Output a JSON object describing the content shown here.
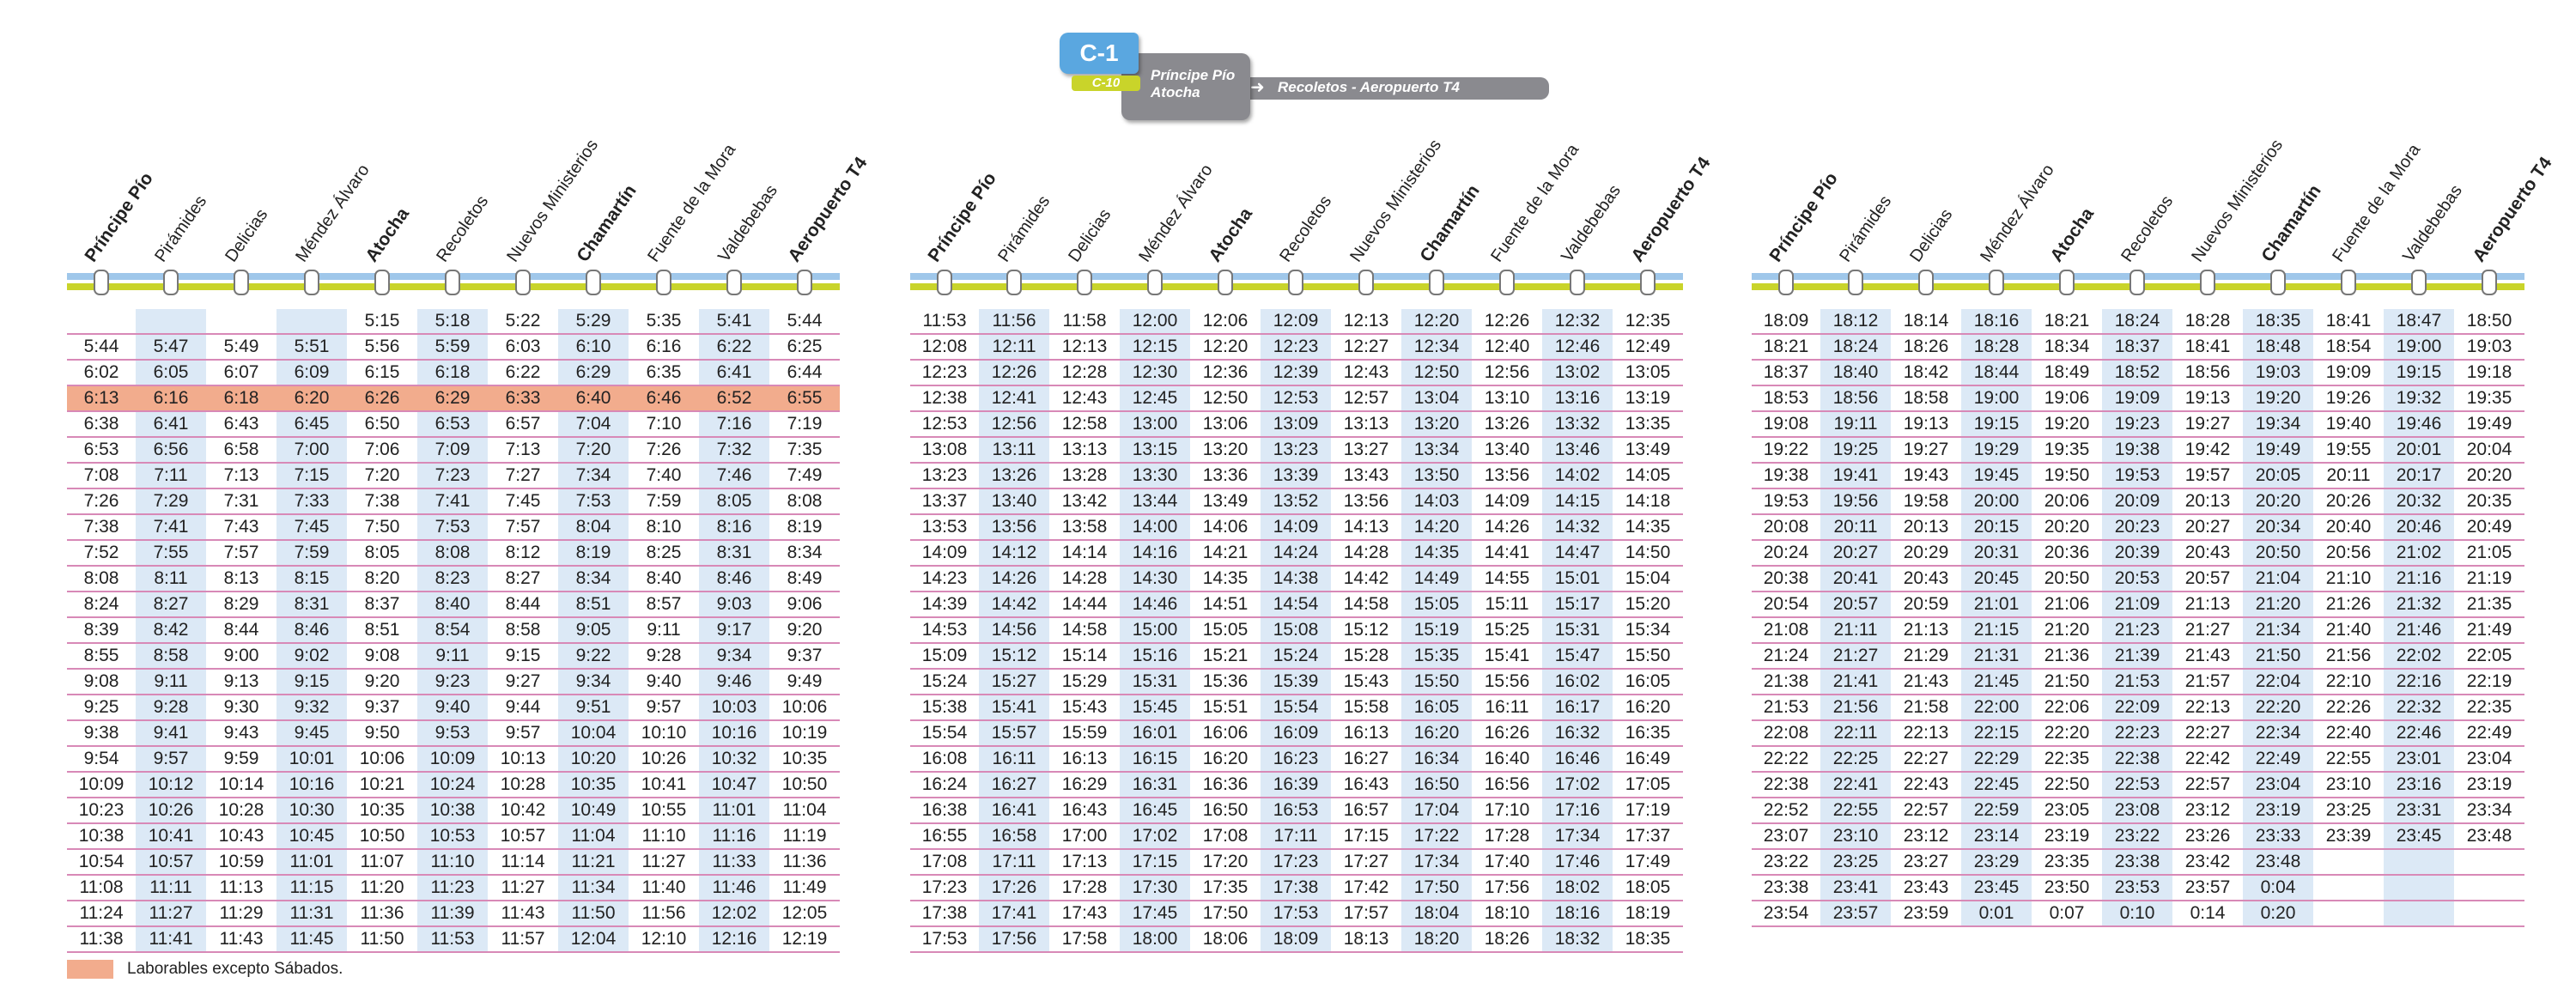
{
  "badge": {
    "line": "C-1",
    "line2": "C-10",
    "origin1": "Príncipe Pío",
    "origin2": "Atocha",
    "route": "Recoletos - Aeropuerto T4"
  },
  "stations": [
    "Príncipe Pío",
    "Pirámides",
    "Delicias",
    "Méndez Álvaro",
    "Atocha",
    "Recoletos",
    "Nuevos Ministerios",
    "Chamartín",
    "Fuente de la Mora",
    "Valdebebas",
    "Aeropuerto T4"
  ],
  "colors": {
    "line_blue": "#9fc7ea",
    "line_yellow": "#c9d42a",
    "highlight": "#dce9f6",
    "weekday_only": "#f2ac8d",
    "row_rule": "#d889b7"
  },
  "legend": "Laborables excepto Sábados.",
  "tables": [
    [
      [
        "",
        "",
        "",
        "",
        "5:15",
        "5:18",
        "5:22",
        "5:29",
        "5:35",
        "5:41",
        "5:44"
      ],
      [
        "5:44",
        "5:47",
        "5:49",
        "5:51",
        "5:56",
        "5:59",
        "6:03",
        "6:10",
        "6:16",
        "6:22",
        "6:25"
      ],
      [
        "6:02",
        "6:05",
        "6:07",
        "6:09",
        "6:15",
        "6:18",
        "6:22",
        "6:29",
        "6:35",
        "6:41",
        "6:44"
      ],
      [
        "6:13",
        "6:16",
        "6:18",
        "6:20",
        "6:26",
        "6:29",
        "6:33",
        "6:40",
        "6:46",
        "6:52",
        "6:55"
      ],
      [
        "6:38",
        "6:41",
        "6:43",
        "6:45",
        "6:50",
        "6:53",
        "6:57",
        "7:04",
        "7:10",
        "7:16",
        "7:19"
      ],
      [
        "6:53",
        "6:56",
        "6:58",
        "7:00",
        "7:06",
        "7:09",
        "7:13",
        "7:20",
        "7:26",
        "7:32",
        "7:35"
      ],
      [
        "7:08",
        "7:11",
        "7:13",
        "7:15",
        "7:20",
        "7:23",
        "7:27",
        "7:34",
        "7:40",
        "7:46",
        "7:49"
      ],
      [
        "7:26",
        "7:29",
        "7:31",
        "7:33",
        "7:38",
        "7:41",
        "7:45",
        "7:53",
        "7:59",
        "8:05",
        "8:08"
      ],
      [
        "7:38",
        "7:41",
        "7:43",
        "7:45",
        "7:50",
        "7:53",
        "7:57",
        "8:04",
        "8:10",
        "8:16",
        "8:19"
      ],
      [
        "7:52",
        "7:55",
        "7:57",
        "7:59",
        "8:05",
        "8:08",
        "8:12",
        "8:19",
        "8:25",
        "8:31",
        "8:34"
      ],
      [
        "8:08",
        "8:11",
        "8:13",
        "8:15",
        "8:20",
        "8:23",
        "8:27",
        "8:34",
        "8:40",
        "8:46",
        "8:49"
      ],
      [
        "8:24",
        "8:27",
        "8:29",
        "8:31",
        "8:37",
        "8:40",
        "8:44",
        "8:51",
        "8:57",
        "9:03",
        "9:06"
      ],
      [
        "8:39",
        "8:42",
        "8:44",
        "8:46",
        "8:51",
        "8:54",
        "8:58",
        "9:05",
        "9:11",
        "9:17",
        "9:20"
      ],
      [
        "8:55",
        "8:58",
        "9:00",
        "9:02",
        "9:08",
        "9:11",
        "9:15",
        "9:22",
        "9:28",
        "9:34",
        "9:37"
      ],
      [
        "9:08",
        "9:11",
        "9:13",
        "9:15",
        "9:20",
        "9:23",
        "9:27",
        "9:34",
        "9:40",
        "9:46",
        "9:49"
      ],
      [
        "9:25",
        "9:28",
        "9:30",
        "9:32",
        "9:37",
        "9:40",
        "9:44",
        "9:51",
        "9:57",
        "10:03",
        "10:06"
      ],
      [
        "9:38",
        "9:41",
        "9:43",
        "9:45",
        "9:50",
        "9:53",
        "9:57",
        "10:04",
        "10:10",
        "10:16",
        "10:19"
      ],
      [
        "9:54",
        "9:57",
        "9:59",
        "10:01",
        "10:06",
        "10:09",
        "10:13",
        "10:20",
        "10:26",
        "10:32",
        "10:35"
      ],
      [
        "10:09",
        "10:12",
        "10:14",
        "10:16",
        "10:21",
        "10:24",
        "10:28",
        "10:35",
        "10:41",
        "10:47",
        "10:50"
      ],
      [
        "10:23",
        "10:26",
        "10:28",
        "10:30",
        "10:35",
        "10:38",
        "10:42",
        "10:49",
        "10:55",
        "11:01",
        "11:04"
      ],
      [
        "10:38",
        "10:41",
        "10:43",
        "10:45",
        "10:50",
        "10:53",
        "10:57",
        "11:04",
        "11:10",
        "11:16",
        "11:19"
      ],
      [
        "10:54",
        "10:57",
        "10:59",
        "11:01",
        "11:07",
        "11:10",
        "11:14",
        "11:21",
        "11:27",
        "11:33",
        "11:36"
      ],
      [
        "11:08",
        "11:11",
        "11:13",
        "11:15",
        "11:20",
        "11:23",
        "11:27",
        "11:34",
        "11:40",
        "11:46",
        "11:49"
      ],
      [
        "11:24",
        "11:27",
        "11:29",
        "11:31",
        "11:36",
        "11:39",
        "11:43",
        "11:50",
        "11:56",
        "12:02",
        "12:05"
      ],
      [
        "11:38",
        "11:41",
        "11:43",
        "11:45",
        "11:50",
        "11:53",
        "11:57",
        "12:04",
        "12:10",
        "12:16",
        "12:19"
      ]
    ],
    [
      [
        "11:53",
        "11:56",
        "11:58",
        "12:00",
        "12:06",
        "12:09",
        "12:13",
        "12:20",
        "12:26",
        "12:32",
        "12:35"
      ],
      [
        "12:08",
        "12:11",
        "12:13",
        "12:15",
        "12:20",
        "12:23",
        "12:27",
        "12:34",
        "12:40",
        "12:46",
        "12:49"
      ],
      [
        "12:23",
        "12:26",
        "12:28",
        "12:30",
        "12:36",
        "12:39",
        "12:43",
        "12:50",
        "12:56",
        "13:02",
        "13:05"
      ],
      [
        "12:38",
        "12:41",
        "12:43",
        "12:45",
        "12:50",
        "12:53",
        "12:57",
        "13:04",
        "13:10",
        "13:16",
        "13:19"
      ],
      [
        "12:53",
        "12:56",
        "12:58",
        "13:00",
        "13:06",
        "13:09",
        "13:13",
        "13:20",
        "13:26",
        "13:32",
        "13:35"
      ],
      [
        "13:08",
        "13:11",
        "13:13",
        "13:15",
        "13:20",
        "13:23",
        "13:27",
        "13:34",
        "13:40",
        "13:46",
        "13:49"
      ],
      [
        "13:23",
        "13:26",
        "13:28",
        "13:30",
        "13:36",
        "13:39",
        "13:43",
        "13:50",
        "13:56",
        "14:02",
        "14:05"
      ],
      [
        "13:37",
        "13:40",
        "13:42",
        "13:44",
        "13:49",
        "13:52",
        "13:56",
        "14:03",
        "14:09",
        "14:15",
        "14:18"
      ],
      [
        "13:53",
        "13:56",
        "13:58",
        "14:00",
        "14:06",
        "14:09",
        "14:13",
        "14:20",
        "14:26",
        "14:32",
        "14:35"
      ],
      [
        "14:09",
        "14:12",
        "14:14",
        "14:16",
        "14:21",
        "14:24",
        "14:28",
        "14:35",
        "14:41",
        "14:47",
        "14:50"
      ],
      [
        "14:23",
        "14:26",
        "14:28",
        "14:30",
        "14:35",
        "14:38",
        "14:42",
        "14:49",
        "14:55",
        "15:01",
        "15:04"
      ],
      [
        "14:39",
        "14:42",
        "14:44",
        "14:46",
        "14:51",
        "14:54",
        "14:58",
        "15:05",
        "15:11",
        "15:17",
        "15:20"
      ],
      [
        "14:53",
        "14:56",
        "14:58",
        "15:00",
        "15:05",
        "15:08",
        "15:12",
        "15:19",
        "15:25",
        "15:31",
        "15:34"
      ],
      [
        "15:09",
        "15:12",
        "15:14",
        "15:16",
        "15:21",
        "15:24",
        "15:28",
        "15:35",
        "15:41",
        "15:47",
        "15:50"
      ],
      [
        "15:24",
        "15:27",
        "15:29",
        "15:31",
        "15:36",
        "15:39",
        "15:43",
        "15:50",
        "15:56",
        "16:02",
        "16:05"
      ],
      [
        "15:38",
        "15:41",
        "15:43",
        "15:45",
        "15:51",
        "15:54",
        "15:58",
        "16:05",
        "16:11",
        "16:17",
        "16:20"
      ],
      [
        "15:54",
        "15:57",
        "15:59",
        "16:01",
        "16:06",
        "16:09",
        "16:13",
        "16:20",
        "16:26",
        "16:32",
        "16:35"
      ],
      [
        "16:08",
        "16:11",
        "16:13",
        "16:15",
        "16:20",
        "16:23",
        "16:27",
        "16:34",
        "16:40",
        "16:46",
        "16:49"
      ],
      [
        "16:24",
        "16:27",
        "16:29",
        "16:31",
        "16:36",
        "16:39",
        "16:43",
        "16:50",
        "16:56",
        "17:02",
        "17:05"
      ],
      [
        "16:38",
        "16:41",
        "16:43",
        "16:45",
        "16:50",
        "16:53",
        "16:57",
        "17:04",
        "17:10",
        "17:16",
        "17:19"
      ],
      [
        "16:55",
        "16:58",
        "17:00",
        "17:02",
        "17:08",
        "17:11",
        "17:15",
        "17:22",
        "17:28",
        "17:34",
        "17:37"
      ],
      [
        "17:08",
        "17:11",
        "17:13",
        "17:15",
        "17:20",
        "17:23",
        "17:27",
        "17:34",
        "17:40",
        "17:46",
        "17:49"
      ],
      [
        "17:23",
        "17:26",
        "17:28",
        "17:30",
        "17:35",
        "17:38",
        "17:42",
        "17:50",
        "17:56",
        "18:02",
        "18:05"
      ],
      [
        "17:38",
        "17:41",
        "17:43",
        "17:45",
        "17:50",
        "17:53",
        "17:57",
        "18:04",
        "18:10",
        "18:16",
        "18:19"
      ],
      [
        "17:53",
        "17:56",
        "17:58",
        "18:00",
        "18:06",
        "18:09",
        "18:13",
        "18:20",
        "18:26",
        "18:32",
        "18:35"
      ]
    ],
    [
      [
        "18:09",
        "18:12",
        "18:14",
        "18:16",
        "18:21",
        "18:24",
        "18:28",
        "18:35",
        "18:41",
        "18:47",
        "18:50"
      ],
      [
        "18:21",
        "18:24",
        "18:26",
        "18:28",
        "18:34",
        "18:37",
        "18:41",
        "18:48",
        "18:54",
        "19:00",
        "19:03"
      ],
      [
        "18:37",
        "18:40",
        "18:42",
        "18:44",
        "18:49",
        "18:52",
        "18:56",
        "19:03",
        "19:09",
        "19:15",
        "19:18"
      ],
      [
        "18:53",
        "18:56",
        "18:58",
        "19:00",
        "19:06",
        "19:09",
        "19:13",
        "19:20",
        "19:26",
        "19:32",
        "19:35"
      ],
      [
        "19:08",
        "19:11",
        "19:13",
        "19:15",
        "19:20",
        "19:23",
        "19:27",
        "19:34",
        "19:40",
        "19:46",
        "19:49"
      ],
      [
        "19:22",
        "19:25",
        "19:27",
        "19:29",
        "19:35",
        "19:38",
        "19:42",
        "19:49",
        "19:55",
        "20:01",
        "20:04"
      ],
      [
        "19:38",
        "19:41",
        "19:43",
        "19:45",
        "19:50",
        "19:53",
        "19:57",
        "20:05",
        "20:11",
        "20:17",
        "20:20"
      ],
      [
        "19:53",
        "19:56",
        "19:58",
        "20:00",
        "20:06",
        "20:09",
        "20:13",
        "20:20",
        "20:26",
        "20:32",
        "20:35"
      ],
      [
        "20:08",
        "20:11",
        "20:13",
        "20:15",
        "20:20",
        "20:23",
        "20:27",
        "20:34",
        "20:40",
        "20:46",
        "20:49"
      ],
      [
        "20:24",
        "20:27",
        "20:29",
        "20:31",
        "20:36",
        "20:39",
        "20:43",
        "20:50",
        "20:56",
        "21:02",
        "21:05"
      ],
      [
        "20:38",
        "20:41",
        "20:43",
        "20:45",
        "20:50",
        "20:53",
        "20:57",
        "21:04",
        "21:10",
        "21:16",
        "21:19"
      ],
      [
        "20:54",
        "20:57",
        "20:59",
        "21:01",
        "21:06",
        "21:09",
        "21:13",
        "21:20",
        "21:26",
        "21:32",
        "21:35"
      ],
      [
        "21:08",
        "21:11",
        "21:13",
        "21:15",
        "21:20",
        "21:23",
        "21:27",
        "21:34",
        "21:40",
        "21:46",
        "21:49"
      ],
      [
        "21:24",
        "21:27",
        "21:29",
        "21:31",
        "21:36",
        "21:39",
        "21:43",
        "21:50",
        "21:56",
        "22:02",
        "22:05"
      ],
      [
        "21:38",
        "21:41",
        "21:43",
        "21:45",
        "21:50",
        "21:53",
        "21:57",
        "22:04",
        "22:10",
        "22:16",
        "22:19"
      ],
      [
        "21:53",
        "21:56",
        "21:58",
        "22:00",
        "22:06",
        "22:09",
        "22:13",
        "22:20",
        "22:26",
        "22:32",
        "22:35"
      ],
      [
        "22:08",
        "22:11",
        "22:13",
        "22:15",
        "22:20",
        "22:23",
        "22:27",
        "22:34",
        "22:40",
        "22:46",
        "22:49"
      ],
      [
        "22:22",
        "22:25",
        "22:27",
        "22:29",
        "22:35",
        "22:38",
        "22:42",
        "22:49",
        "22:55",
        "23:01",
        "23:04"
      ],
      [
        "22:38",
        "22:41",
        "22:43",
        "22:45",
        "22:50",
        "22:53",
        "22:57",
        "23:04",
        "23:10",
        "23:16",
        "23:19"
      ],
      [
        "22:52",
        "22:55",
        "22:57",
        "22:59",
        "23:05",
        "23:08",
        "23:12",
        "23:19",
        "23:25",
        "23:31",
        "23:34"
      ],
      [
        "23:07",
        "23:10",
        "23:12",
        "23:14",
        "23:19",
        "23:22",
        "23:26",
        "23:33",
        "23:39",
        "23:45",
        "23:48"
      ],
      [
        "23:22",
        "23:25",
        "23:27",
        "23:29",
        "23:35",
        "23:38",
        "23:42",
        "23:48",
        "",
        "",
        ""
      ],
      [
        "23:38",
        "23:41",
        "23:43",
        "23:45",
        "23:50",
        "23:53",
        "23:57",
        "0:04",
        "",
        "",
        ""
      ],
      [
        "23:54",
        "23:57",
        "23:59",
        "0:01",
        "0:07",
        "0:10",
        "0:14",
        "0:20",
        "",
        "",
        ""
      ]
    ]
  ]
}
